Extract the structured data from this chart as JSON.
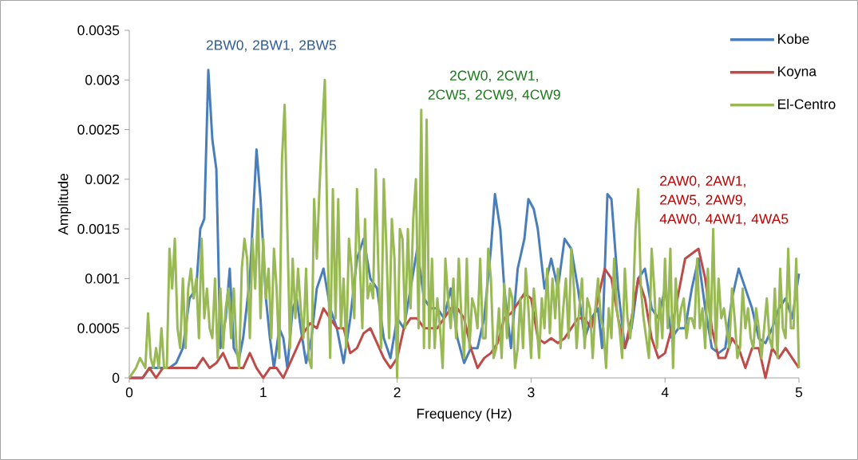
{
  "chart_data": {
    "type": "line",
    "xlabel": "Frequency (Hz)",
    "ylabel": "Amplitude",
    "xlim": [
      0,
      5
    ],
    "xticks": [
      0,
      1,
      2,
      3,
      4,
      5
    ],
    "ylim": [
      0,
      0.0035
    ],
    "yticks": [
      0,
      0.0005,
      0.001,
      0.0015,
      0.002,
      0.0025,
      0.003,
      0.0035
    ],
    "grid": false,
    "legend": "right",
    "line_style": "solid",
    "annotations": [
      "2BW0, 2BW1, 2BW5",
      "2CW0, 2CW1, 2CW5, 2CW9, 4CW9",
      "2AW0, 2AW1, 2AW5, 2AW9, 4AW0, 4AW1, 4WA5"
    ],
    "series": [
      {
        "name": "Kobe",
        "color": "#4a7ebb",
        "x": [
          0,
          0.1,
          0.15,
          0.2,
          0.25,
          0.3,
          0.35,
          0.4,
          0.45,
          0.5,
          0.53,
          0.56,
          0.59,
          0.62,
          0.65,
          0.68,
          0.72,
          0.75,
          0.78,
          0.82,
          0.85,
          0.9,
          0.95,
          0.98,
          1.02,
          1.05,
          1.08,
          1.12,
          1.15,
          1.18,
          1.22,
          1.25,
          1.28,
          1.32,
          1.36,
          1.4,
          1.45,
          1.5,
          1.55,
          1.6,
          1.65,
          1.7,
          1.75,
          1.8,
          1.85,
          1.9,
          1.95,
          2.0,
          2.05,
          2.1,
          2.15,
          2.2,
          2.25,
          2.3,
          2.35,
          2.4,
          2.45,
          2.5,
          2.55,
          2.6,
          2.65,
          2.7,
          2.73,
          2.77,
          2.8,
          2.85,
          2.9,
          2.95,
          2.98,
          3.02,
          3.05,
          3.1,
          3.15,
          3.2,
          3.25,
          3.3,
          3.35,
          3.4,
          3.45,
          3.5,
          3.53,
          3.57,
          3.6,
          3.65,
          3.7,
          3.75,
          3.8,
          3.85,
          3.9,
          3.95,
          4.0,
          4.05,
          4.1,
          4.15,
          4.2,
          4.25,
          4.3,
          4.35,
          4.4,
          4.45,
          4.5,
          4.55,
          4.6,
          4.65,
          4.7,
          4.75,
          4.8,
          4.85,
          4.9,
          4.95,
          5.0
        ],
        "values": [
          0,
          0,
          0.0001,
          0.0001,
          0.0001,
          0.0001,
          0.00015,
          0.0003,
          0.0008,
          0.0009,
          0.0015,
          0.0016,
          0.0031,
          0.0024,
          0.0021,
          0.0003,
          0.0006,
          0.0011,
          0.0003,
          0.0002,
          0.0004,
          0.001,
          0.0023,
          0.0018,
          0.0008,
          0.0004,
          0.0001,
          0.0005,
          0.0004,
          0.0001,
          0.0007,
          0.0008,
          0.0005,
          0.00015,
          0.0004,
          0.0009,
          0.0011,
          0.0007,
          0.0005,
          0.00015,
          0.0006,
          0.0012,
          0.0014,
          0.001,
          0.0009,
          0.0004,
          0.0002,
          0.0006,
          0.0005,
          0.0009,
          0.0013,
          0.0008,
          0.0007,
          0.0007,
          0.0006,
          0.0009,
          0.0004,
          0.00015,
          0.0003,
          0.0003,
          0.0006,
          0.0013,
          0.00185,
          0.0015,
          0.0009,
          0.0003,
          0.0011,
          0.0014,
          0.0018,
          0.0017,
          0.0015,
          0.0009,
          0.0012,
          0.0009,
          0.0014,
          0.0013,
          0.0009,
          0.0004,
          0.0006,
          0.0007,
          0.0003,
          0.00185,
          0.0018,
          0.0009,
          0.0003,
          0.0005,
          0.001,
          0.0011,
          0.0007,
          0.0006,
          0.0009,
          0.0004,
          0.0005,
          0.0005,
          0.0009,
          0.0012,
          0.0007,
          0.0003,
          0.00025,
          0.0003,
          0.0008,
          0.0011,
          0.0009,
          0.0007,
          0.0004,
          0.00035,
          0.0005,
          0.0007,
          0.0008,
          0.0006,
          0.00105
        ]
      },
      {
        "name": "Koyna",
        "color": "#be4b48",
        "x": [
          0,
          0.1,
          0.15,
          0.2,
          0.25,
          0.3,
          0.35,
          0.4,
          0.45,
          0.5,
          0.55,
          0.6,
          0.65,
          0.7,
          0.75,
          0.8,
          0.85,
          0.9,
          0.95,
          1.0,
          1.05,
          1.1,
          1.15,
          1.2,
          1.25,
          1.3,
          1.35,
          1.4,
          1.45,
          1.5,
          1.55,
          1.6,
          1.65,
          1.7,
          1.75,
          1.8,
          1.85,
          1.9,
          1.95,
          2.0,
          2.05,
          2.1,
          2.15,
          2.2,
          2.25,
          2.3,
          2.35,
          2.4,
          2.45,
          2.5,
          2.55,
          2.6,
          2.65,
          2.7,
          2.75,
          2.8,
          2.85,
          2.9,
          2.95,
          3.0,
          3.05,
          3.1,
          3.15,
          3.2,
          3.25,
          3.3,
          3.35,
          3.4,
          3.45,
          3.5,
          3.55,
          3.6,
          3.65,
          3.7,
          3.75,
          3.8,
          3.85,
          3.9,
          3.95,
          4.0,
          4.05,
          4.1,
          4.15,
          4.2,
          4.25,
          4.3,
          4.35,
          4.4,
          4.45,
          4.5,
          4.55,
          4.6,
          4.65,
          4.7,
          4.75,
          4.8,
          4.85,
          4.9,
          4.95,
          5.0
        ],
        "values": [
          0,
          0,
          0.0001,
          0,
          0.0001,
          0.0001,
          0.0001,
          0.0001,
          0.0001,
          0.0001,
          0.0002,
          0.0001,
          0.00015,
          0.00025,
          0.0001,
          0.0001,
          0.0001,
          0.00025,
          0.0001,
          0,
          0.0001,
          0.0001,
          0,
          0.00015,
          0.0003,
          0.00045,
          0.00055,
          0.0005,
          0.0007,
          0.0006,
          0.0005,
          0.0005,
          0.00025,
          0.0003,
          0.00045,
          0.0005,
          0.00035,
          0.0002,
          0.0001,
          0.0002,
          0.0005,
          0.0006,
          0.0006,
          0.0005,
          0.0005,
          0.0005,
          0.0006,
          0.0007,
          0.0007,
          0.0006,
          0.0003,
          0.0001,
          0.0002,
          0.00025,
          0.00035,
          0.0006,
          0.00065,
          0.00075,
          0.00085,
          0.0008,
          0.0004,
          0.00035,
          0.0004,
          0.00035,
          0.0004,
          0.0005,
          0.0006,
          0.0006,
          0.0005,
          0.0008,
          0.0011,
          0.001,
          0.0006,
          0.0003,
          0.0006,
          0.001,
          0.0008,
          0.0004,
          0.0002,
          0.00025,
          0.0005,
          0.00085,
          0.0012,
          0.00125,
          0.0013,
          0.001,
          0.0005,
          0.0002,
          0.0002,
          0.0004,
          0.0003,
          0.0001,
          0.0003,
          0.0003,
          0,
          0.0003,
          0.0002,
          0.0003,
          0.0002,
          0.0001
        ]
      },
      {
        "name": "El-Centro",
        "color": "#98b954",
        "x": [
          0,
          0.05,
          0.08,
          0.1,
          0.12,
          0.14,
          0.16,
          0.18,
          0.2,
          0.22,
          0.24,
          0.26,
          0.28,
          0.3,
          0.32,
          0.34,
          0.36,
          0.38,
          0.4,
          0.42,
          0.44,
          0.46,
          0.48,
          0.5,
          0.52,
          0.54,
          0.56,
          0.58,
          0.6,
          0.62,
          0.64,
          0.66,
          0.68,
          0.7,
          0.72,
          0.74,
          0.76,
          0.78,
          0.8,
          0.82,
          0.84,
          0.86,
          0.88,
          0.9,
          0.92,
          0.94,
          0.96,
          0.98,
          1.0,
          1.02,
          1.04,
          1.06,
          1.08,
          1.1,
          1.12,
          1.14,
          1.16,
          1.18,
          1.2,
          1.22,
          1.24,
          1.26,
          1.28,
          1.3,
          1.32,
          1.34,
          1.36,
          1.38,
          1.4,
          1.42,
          1.44,
          1.46,
          1.48,
          1.5,
          1.52,
          1.54,
          1.56,
          1.58,
          1.6,
          1.62,
          1.64,
          1.66,
          1.68,
          1.7,
          1.72,
          1.74,
          1.76,
          1.78,
          1.8,
          1.82,
          1.84,
          1.86,
          1.88,
          1.9,
          1.92,
          1.94,
          1.96,
          1.98,
          2.0,
          2.02,
          2.04,
          2.06,
          2.08,
          2.1,
          2.12,
          2.14,
          2.16,
          2.18,
          2.2,
          2.22,
          2.24,
          2.26,
          2.28,
          2.3,
          2.32,
          2.34,
          2.36,
          2.38,
          2.4,
          2.42,
          2.44,
          2.46,
          2.48,
          2.5,
          2.52,
          2.54,
          2.56,
          2.58,
          2.6,
          2.62,
          2.64,
          2.66,
          2.68,
          2.7,
          2.72,
          2.74,
          2.76,
          2.78,
          2.8,
          2.82,
          2.84,
          2.86,
          2.88,
          2.9,
          2.92,
          2.94,
          2.96,
          2.98,
          3.0,
          3.02,
          3.04,
          3.06,
          3.08,
          3.1,
          3.12,
          3.14,
          3.16,
          3.18,
          3.2,
          3.22,
          3.24,
          3.26,
          3.28,
          3.3,
          3.32,
          3.34,
          3.36,
          3.38,
          3.4,
          3.42,
          3.44,
          3.46,
          3.48,
          3.5,
          3.52,
          3.54,
          3.56,
          3.58,
          3.6,
          3.62,
          3.64,
          3.66,
          3.68,
          3.7,
          3.72,
          3.74,
          3.76,
          3.78,
          3.8,
          3.82,
          3.84,
          3.86,
          3.88,
          3.9,
          3.92,
          3.94,
          3.96,
          3.98,
          4.0,
          4.02,
          4.04,
          4.06,
          4.08,
          4.1,
          4.12,
          4.14,
          4.16,
          4.18,
          4.2,
          4.22,
          4.24,
          4.26,
          4.28,
          4.3,
          4.32,
          4.34,
          4.36,
          4.38,
          4.4,
          4.42,
          4.44,
          4.46,
          4.48,
          4.5,
          4.52,
          4.54,
          4.56,
          4.58,
          4.6,
          4.62,
          4.64,
          4.66,
          4.68,
          4.7,
          4.72,
          4.74,
          4.76,
          4.78,
          4.8,
          4.82,
          4.84,
          4.86,
          4.88,
          4.9,
          4.92,
          4.94,
          4.96,
          4.98,
          5.0
        ],
        "values": [
          0,
          0.0001,
          0.0002,
          0.00015,
          0.0001,
          0.00065,
          0.0002,
          0.0001,
          0.0003,
          0.0001,
          0.0005,
          0.0001,
          0.0001,
          0.0013,
          0.0009,
          0.0014,
          0.0005,
          0.0003,
          0.001,
          0.0003,
          0.0009,
          0.0011,
          0.0008,
          0.001,
          0.0004,
          0.0014,
          0.0006,
          0.0009,
          0.0005,
          0.0004,
          0.001,
          0.0002,
          0.0009,
          0.0003,
          0.0007,
          0.0009,
          0.0004,
          0.0009,
          0.0003,
          0.0001,
          0.0011,
          0.0014,
          0.0012,
          0.0004,
          0.0014,
          0.0009,
          0.0017,
          0.0006,
          0.0014,
          0.0008,
          0.0011,
          0.0004,
          0.0013,
          0.0009,
          0.0002,
          0.0022,
          0.00275,
          0.0015,
          0.0003,
          0.0012,
          0.0006,
          0.0011,
          0.0007,
          0.0004,
          0.0011,
          0.0002,
          0.0001,
          0.0018,
          0.0012,
          0.0019,
          0.0025,
          0.003,
          0.0014,
          0.0002,
          0.0019,
          0.0006,
          0.0018,
          0.0005,
          0.001,
          0.0003,
          0.0014,
          0.0011,
          0.0006,
          0.0019,
          0.0012,
          0.0005,
          0.0016,
          0.0008,
          0.00095,
          0.0008,
          0.0021,
          0.0011,
          0.0003,
          0.002,
          0.0013,
          0.0004,
          0.0016,
          0.0012,
          0,
          0.0015,
          0.0014,
          0.0005,
          0.0015,
          0.0007,
          0.0016,
          0.002,
          0.0005,
          0.0027,
          0.0003,
          0.0026,
          0.0003,
          0.0012,
          0.0003,
          0.0008,
          0.0005,
          0.0001,
          0.0012,
          0.0008,
          0.0005,
          0.001,
          0.0004,
          0.0012,
          0.0006,
          0.0002,
          0.0012,
          0.0003,
          0.0008,
          0.0007,
          0.0005,
          0.0012,
          0.0004,
          0.0004,
          0.0013,
          0.001,
          0.0002,
          0.0003,
          0.0007,
          0.0002,
          0.00095,
          0.0004,
          0.0009,
          0.0008,
          0.0001,
          0.0003,
          0.0008,
          0.0003,
          0.0011,
          0.0007,
          0.0002,
          0.0009,
          0.0006,
          0.0002,
          0.0008,
          0.0005,
          0.0011,
          0.00045,
          0.001,
          0.0006,
          0.0011,
          0.0003,
          0.0007,
          0.001,
          0.0004,
          0.0013,
          0.0009,
          0.0003,
          0.0007,
          0.001,
          0.0003,
          0.0008,
          0.0007,
          0.0002,
          0.0007,
          0.001,
          0.0006,
          0.0005,
          0.0001,
          0.0007,
          0.0004,
          0.0012,
          0.0007,
          0.0005,
          0.0002,
          0.0011,
          0.0006,
          0.0004,
          0.0007,
          0.0015,
          0.0019,
          0.0009,
          0.0006,
          0.0004,
          0.0002,
          0.0013,
          0.0009,
          0.0003,
          0.0008,
          0.0004,
          0.0012,
          0.0005,
          0.0013,
          0.0001,
          0.001,
          0.0005,
          0.0007,
          0.0008,
          0.0004,
          0.0006,
          0.0006,
          0.0005,
          0.0012,
          0.0005,
          0.0007,
          0.0003,
          0.0011,
          0.0004,
          0.0015,
          0.0003,
          0.001,
          0.0006,
          0.0007,
          0.0005,
          0.0003,
          0.0009,
          0.0006,
          0.0002,
          0.0003,
          0.0009,
          0.0005,
          0.0007,
          0.0004,
          0.0003,
          0.0007,
          0.0005,
          0.0002,
          0.0005,
          0.0008,
          0.0004,
          0.0003,
          0.0009,
          0.0002,
          0.0011,
          0.0005,
          0.0004,
          0.0013,
          0.0005,
          0.0005,
          0.0012,
          0.0001
        ]
      }
    ]
  }
}
